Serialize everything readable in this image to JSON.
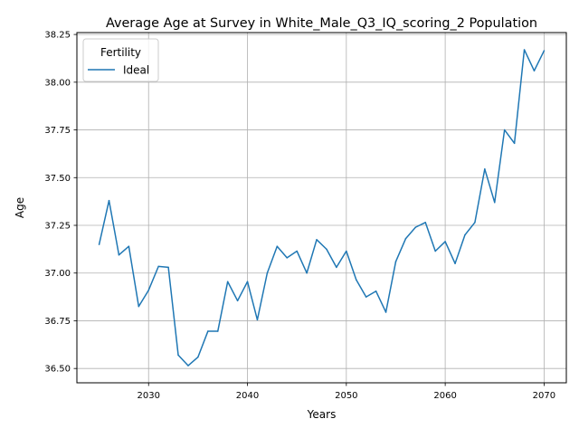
{
  "colors": {
    "series_line": "#1f77b4",
    "grid": "#b0b0b0",
    "axes": "#000000",
    "legend_border": "#cccccc"
  },
  "chart_data": {
    "type": "line",
    "title": "Average Age at Survey in White_Male_Q3_IQ_scoring_2 Population",
    "xlabel": "Years",
    "ylabel": "Age",
    "xlim": [
      2022.75,
      2072.25
    ],
    "ylim": [
      36.425,
      38.26
    ],
    "xticks": [
      2030,
      2040,
      2050,
      2060,
      2070
    ],
    "xtick_labels": [
      "2030",
      "2040",
      "2050",
      "2060",
      "2070"
    ],
    "yticks": [
      36.5,
      36.75,
      37.0,
      37.25,
      37.5,
      37.75,
      38.0,
      38.25
    ],
    "ytick_labels": [
      "36.50",
      "36.75",
      "37.00",
      "37.25",
      "37.50",
      "37.75",
      "38.00",
      "38.25"
    ],
    "grid": true,
    "legend": {
      "title": "Fertility",
      "placement": "upper-left"
    },
    "series": [
      {
        "name": "Ideal",
        "x": [
          2025,
          2026,
          2027,
          2028,
          2029,
          2030,
          2031,
          2032,
          2033,
          2034,
          2035,
          2036,
          2037,
          2038,
          2039,
          2040,
          2041,
          2042,
          2043,
          2044,
          2045,
          2046,
          2047,
          2048,
          2049,
          2050,
          2051,
          2052,
          2053,
          2054,
          2055,
          2056,
          2057,
          2058,
          2059,
          2060,
          2061,
          2062,
          2063,
          2064,
          2065,
          2066,
          2067,
          2068,
          2069,
          2070
        ],
        "y": [
          37.15,
          37.38,
          37.095,
          37.14,
          36.825,
          36.91,
          37.035,
          37.03,
          36.57,
          36.515,
          36.56,
          36.695,
          36.695,
          36.955,
          36.855,
          36.955,
          36.755,
          37.0,
          37.14,
          37.08,
          37.115,
          37.0,
          37.175,
          37.125,
          37.03,
          37.115,
          36.965,
          36.875,
          36.905,
          36.795,
          37.06,
          37.18,
          37.24,
          37.265,
          37.115,
          37.165,
          37.05,
          37.2,
          37.265,
          37.545,
          37.37,
          37.75,
          37.68,
          38.17,
          38.06,
          38.165
        ]
      }
    ]
  }
}
